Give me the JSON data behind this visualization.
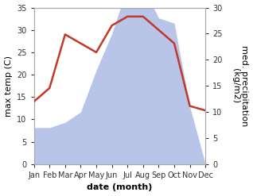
{
  "months": [
    "Jan",
    "Feb",
    "Mar",
    "Apr",
    "May",
    "Jun",
    "Jul",
    "Aug",
    "Sep",
    "Oct",
    "Nov",
    "Dec"
  ],
  "temperature": [
    14,
    17,
    29,
    27,
    25,
    31,
    33,
    33,
    30,
    27,
    13,
    12
  ],
  "precipitation": [
    7,
    7,
    8,
    10,
    18,
    25,
    34,
    34,
    28,
    27,
    11,
    0
  ],
  "temp_color": "#c0392b",
  "precip_fill_color": "#b8c4e8",
  "xlabel": "date (month)",
  "ylabel_left": "max temp (C)",
  "ylabel_right": "med. precipitation\n(kg/m2)",
  "ylim_left": [
    0,
    35
  ],
  "ylim_right": [
    0,
    30
  ],
  "yticks_left": [
    0,
    5,
    10,
    15,
    20,
    25,
    30,
    35
  ],
  "yticks_right": [
    0,
    5,
    10,
    15,
    20,
    25,
    30
  ],
  "bg_color": "#ffffff",
  "line_width": 1.8,
  "tick_fontsize": 7,
  "label_fontsize": 8,
  "xlabel_fontsize": 8
}
